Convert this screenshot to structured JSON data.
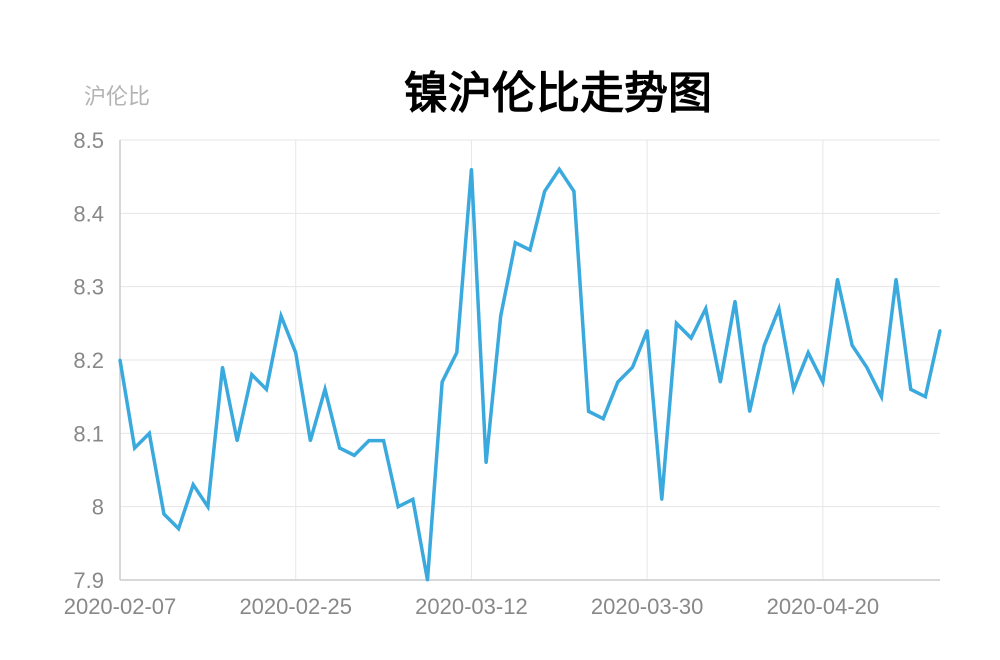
{
  "chart_data": {
    "type": "line",
    "title": "镍沪伦比走势图",
    "ylabel": "沪伦比",
    "xlabel": "",
    "ylim": [
      7.9,
      8.5
    ],
    "y_ticks": [
      "8.5",
      "8.4",
      "8.3",
      "8.2",
      "8.1",
      "8",
      "7.9"
    ],
    "x_tick_labels": [
      "2020-02-07",
      "2020-02-25",
      "2020-03-12",
      "2020-03-30",
      "2020-04-20"
    ],
    "grid": true,
    "line_color": "#3aa9dd",
    "series": [
      {
        "values": [
          8.2,
          8.08,
          8.1,
          7.99,
          7.97,
          8.03,
          8.0,
          8.19,
          8.09,
          8.18,
          8.16,
          8.26,
          8.21,
          8.09,
          8.16,
          8.08,
          8.07,
          8.09,
          8.09,
          8.0,
          8.01,
          7.9,
          8.17,
          8.21,
          8.46,
          8.06,
          8.26,
          8.36,
          8.35,
          8.43,
          8.46,
          8.43,
          8.13,
          8.12,
          8.17,
          8.19,
          8.24,
          8.01,
          8.25,
          8.23,
          8.27,
          8.17,
          8.28,
          8.13,
          8.22,
          8.27,
          8.16,
          8.21,
          8.17,
          8.31,
          8.22,
          8.19,
          8.15,
          8.31,
          8.16,
          8.15,
          8.24
        ]
      }
    ]
  }
}
